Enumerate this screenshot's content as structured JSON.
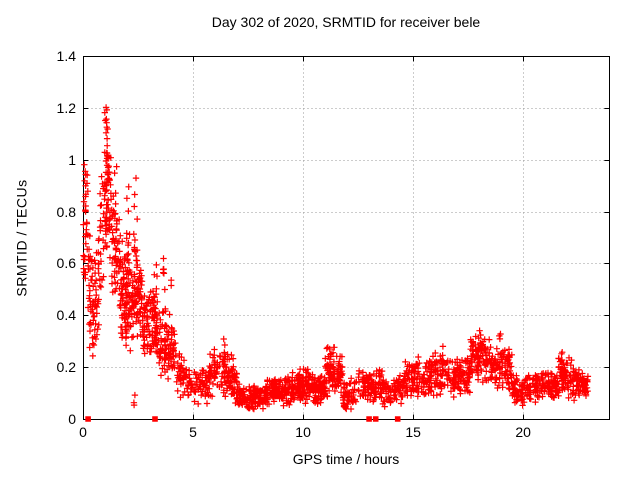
{
  "title": "Day 302 of 2020, SRMTID for receiver bele",
  "colors": {
    "marker": "#ff0000",
    "axis": "#000000",
    "grid": "#9a9a9a",
    "background": "#ffffff",
    "text": "#000000"
  },
  "chart_data": {
    "type": "scatter",
    "title": "Day 302 of 2020, SRMTID for receiver bele",
    "xlabel": "GPS time / hours",
    "ylabel": "SRMTID / TECUs",
    "xlim": [
      0,
      23.9
    ],
    "ylim": [
      0,
      1.4
    ],
    "xticks": [
      0,
      5,
      10,
      15,
      20
    ],
    "xtick_labels": [
      "0",
      "5",
      "10",
      "15",
      "20"
    ],
    "yticks": [
      0,
      0.2,
      0.4,
      0.6,
      0.8,
      1,
      1.2,
      1.4
    ],
    "ytick_labels": [
      "0",
      "0.2",
      "0.4",
      "0.6",
      "0.8",
      "1",
      "1.2",
      "1.4"
    ],
    "grid": true,
    "legend": "none",
    "marker": "plus",
    "series_name": "SRMTID",
    "seed": 302,
    "bands": [
      [
        0.0,
        0.3,
        20,
        0.45,
        1.0,
        0.3,
        0.8
      ],
      [
        0.3,
        0.7,
        55,
        0.2,
        0.72,
        0.2,
        0.7
      ],
      [
        0.7,
        1.0,
        30,
        0.3,
        0.85,
        0.5,
        1.1
      ],
      [
        1.0,
        1.3,
        35,
        0.6,
        1.21,
        0.55,
        1.05
      ],
      [
        1.3,
        1.7,
        45,
        0.35,
        1.0,
        0.35,
        0.8
      ],
      [
        1.7,
        2.3,
        110,
        0.25,
        0.7,
        0.25,
        0.65
      ],
      [
        2.3,
        2.7,
        55,
        0.3,
        0.8,
        0.28,
        0.6
      ],
      [
        2.7,
        3.4,
        90,
        0.22,
        0.55,
        0.22,
        0.52
      ],
      [
        3.4,
        4.2,
        85,
        0.15,
        0.45,
        0.13,
        0.38
      ],
      [
        4.2,
        4.8,
        45,
        0.08,
        0.35,
        0.06,
        0.22
      ],
      [
        4.8,
        5.7,
        60,
        0.05,
        0.22,
        0.06,
        0.24
      ],
      [
        5.7,
        7.0,
        120,
        0.07,
        0.3,
        0.06,
        0.24
      ],
      [
        7.0,
        8.3,
        130,
        0.03,
        0.14,
        0.03,
        0.12
      ],
      [
        8.3,
        9.3,
        110,
        0.04,
        0.16,
        0.05,
        0.17
      ],
      [
        9.3,
        10.3,
        120,
        0.05,
        0.2,
        0.05,
        0.2
      ],
      [
        10.3,
        11.0,
        85,
        0.04,
        0.18,
        0.05,
        0.18
      ],
      [
        11.0,
        11.8,
        95,
        0.08,
        0.3,
        0.08,
        0.26
      ],
      [
        11.8,
        12.4,
        60,
        0.02,
        0.16,
        0.04,
        0.16
      ],
      [
        12.4,
        13.6,
        95,
        0.06,
        0.2,
        0.06,
        0.2
      ],
      [
        13.6,
        14.6,
        75,
        0.03,
        0.18,
        0.04,
        0.18
      ],
      [
        14.6,
        15.6,
        85,
        0.06,
        0.24,
        0.08,
        0.24
      ],
      [
        15.6,
        16.8,
        100,
        0.08,
        0.28,
        0.08,
        0.26
      ],
      [
        16.8,
        17.6,
        85,
        0.08,
        0.25,
        0.1,
        0.25
      ],
      [
        17.6,
        18.4,
        85,
        0.12,
        0.35,
        0.12,
        0.32
      ],
      [
        18.4,
        19.5,
        95,
        0.1,
        0.32,
        0.1,
        0.28
      ],
      [
        19.5,
        20.8,
        110,
        0.05,
        0.18,
        0.05,
        0.18
      ],
      [
        20.8,
        21.6,
        75,
        0.07,
        0.2,
        0.07,
        0.2
      ],
      [
        21.6,
        22.2,
        65,
        0.08,
        0.26,
        0.08,
        0.24
      ],
      [
        22.2,
        22.95,
        75,
        0.07,
        0.2,
        0.08,
        0.18
      ]
    ],
    "streaks": [
      [
        0.08,
        0.55,
        1.02,
        16
      ],
      [
        0.15,
        0.75,
        1.0,
        8
      ],
      [
        1.05,
        0.75,
        1.21,
        26
      ],
      [
        1.15,
        0.9,
        1.18,
        10
      ],
      [
        1.5,
        0.55,
        1.0,
        10
      ],
      [
        2.05,
        0.5,
        0.93,
        12
      ],
      [
        2.38,
        0.05,
        0.1,
        3
      ],
      [
        2.4,
        0.35,
        0.95,
        14
      ],
      [
        3.3,
        0.28,
        0.62,
        12
      ],
      [
        3.7,
        0.25,
        0.62,
        10
      ],
      [
        4.0,
        0.2,
        0.55,
        8
      ],
      [
        6.4,
        0.15,
        0.32,
        8
      ],
      [
        11.4,
        0.12,
        0.3,
        10
      ],
      [
        16.3,
        0.12,
        0.28,
        8
      ],
      [
        18.0,
        0.15,
        0.35,
        10
      ],
      [
        18.9,
        0.15,
        0.33,
        8
      ],
      [
        21.8,
        0.1,
        0.26,
        6
      ]
    ],
    "zero_squares": [
      0.23,
      3.27,
      13.0,
      13.3,
      14.3
    ]
  }
}
